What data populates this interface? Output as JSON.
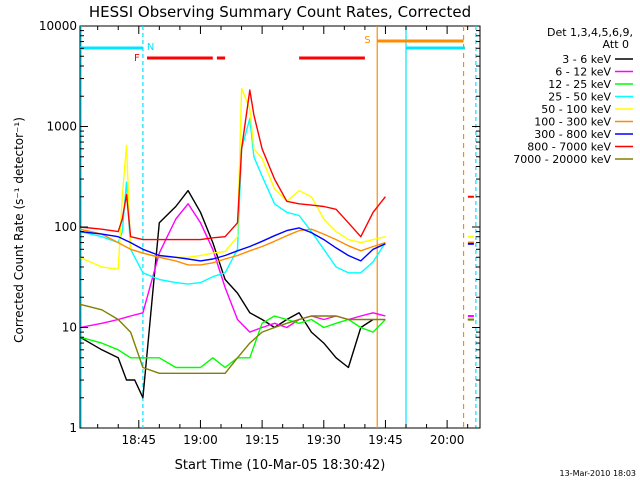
{
  "chart_data": {
    "type": "line",
    "title": "HESSI Observing Summary Count Rates, Corrected",
    "xlabel": "Start Time (10-Mar-05 18:30:42)",
    "ylabel": "Corrected Count Rate (s⁻¹ detector⁻¹)",
    "yscale": "log",
    "ylim": [
      1,
      10000
    ],
    "xlim": [
      "18:30:42",
      "20:08:00"
    ],
    "x_tick_labels": [
      "18:45",
      "19:00",
      "19:15",
      "19:30",
      "19:45",
      "20:00"
    ],
    "y_tick_labels": [
      "1",
      "10",
      "100",
      "1000",
      "10000"
    ],
    "legend_title": [
      "Det 1,3,4,5,6,9,",
      "Att 0"
    ],
    "legend_position": "right",
    "footer": "13-Mar-2010 18:03",
    "annotations": [
      {
        "label": "N",
        "time": "18:46",
        "color": "#00e5ff"
      },
      {
        "label": "F",
        "time": "18:47",
        "color": "#ff0000"
      },
      {
        "label": "S",
        "time": "19:43",
        "color": "#ff8c00"
      }
    ],
    "series": [
      {
        "name": "3 - 6 keV",
        "color": "#000000",
        "t": [
          "18:30:42",
          "18:36",
          "18:40",
          "18:42",
          "18:44",
          "18:46",
          "18:50",
          "18:54",
          "18:57",
          "19:00",
          "19:03",
          "19:06",
          "19:09",
          "19:12",
          "19:15",
          "19:18",
          "19:21",
          "19:24",
          "19:27",
          "19:30",
          "19:33",
          "19:36",
          "19:39",
          "19:42"
        ],
        "values": [
          8,
          6,
          5,
          3,
          3,
          2,
          110,
          160,
          230,
          140,
          70,
          30,
          22,
          14,
          12,
          10,
          12,
          14,
          9,
          7,
          5,
          4,
          10,
          12
        ]
      },
      {
        "name": "6 - 12 keV",
        "color": "#ff00ff",
        "t": [
          "18:30:42",
          "18:36",
          "18:40",
          "18:43",
          "18:46",
          "18:50",
          "18:54",
          "18:57",
          "19:00",
          "19:03",
          "19:06",
          "19:09",
          "19:12",
          "19:15",
          "19:18",
          "19:21",
          "19:24",
          "19:27",
          "19:30",
          "19:33",
          "19:36",
          "19:39",
          "19:42",
          "19:45"
        ],
        "values": [
          10,
          11,
          12,
          13,
          14,
          55,
          120,
          170,
          110,
          60,
          25,
          12,
          9,
          10,
          11,
          10,
          12,
          13,
          12,
          13,
          12,
          13,
          14,
          13
        ]
      },
      {
        "name": "12 - 25 keV",
        "color": "#00ff00",
        "t": [
          "18:30:42",
          "18:36",
          "18:40",
          "18:43",
          "18:46",
          "18:50",
          "18:54",
          "18:57",
          "19:00",
          "19:03",
          "19:06",
          "19:09",
          "19:12",
          "19:15",
          "19:18",
          "19:21",
          "19:24",
          "19:27",
          "19:30",
          "19:33",
          "19:36",
          "19:39",
          "19:42",
          "19:45"
        ],
        "values": [
          8,
          7,
          6,
          5,
          5,
          5,
          4,
          4,
          4,
          5,
          4,
          5,
          5,
          11,
          13,
          12,
          11,
          12,
          10,
          11,
          12,
          10,
          9,
          12
        ]
      },
      {
        "name": "25 - 50 keV",
        "color": "#00ffff",
        "t": [
          "18:30:42",
          "18:36",
          "18:40",
          "18:41",
          "18:42",
          "18:43",
          "18:46",
          "18:50",
          "18:54",
          "18:57",
          "19:00",
          "19:03",
          "19:06",
          "19:09",
          "19:10",
          "19:12",
          "19:13",
          "19:15",
          "19:18",
          "19:21",
          "19:24",
          "19:27",
          "19:30",
          "19:33",
          "19:36",
          "19:39",
          "19:42",
          "19:45"
        ],
        "values": [
          90,
          80,
          70,
          90,
          280,
          60,
          35,
          30,
          28,
          27,
          28,
          32,
          35,
          60,
          600,
          1200,
          500,
          320,
          170,
          140,
          130,
          90,
          60,
          40,
          35,
          35,
          45,
          70
        ]
      },
      {
        "name": "50 - 100 keV",
        "color": "#ffff00",
        "t": [
          "18:30:42",
          "18:36",
          "18:40",
          "18:41",
          "18:42",
          "18:43",
          "18:46",
          "18:50",
          "18:54",
          "18:57",
          "19:00",
          "19:03",
          "19:06",
          "19:09",
          "19:10",
          "19:12",
          "19:13",
          "19:15",
          "19:18",
          "19:21",
          "19:24",
          "19:27",
          "19:30",
          "19:33",
          "19:36",
          "19:39",
          "19:42",
          "19:45"
        ],
        "values": [
          50,
          40,
          38,
          200,
          650,
          60,
          55,
          50,
          50,
          50,
          52,
          55,
          57,
          80,
          2400,
          1500,
          600,
          480,
          240,
          180,
          230,
          200,
          120,
          90,
          75,
          70,
          75,
          80
        ]
      },
      {
        "name": "100 - 300 keV",
        "color": "#ff8c00",
        "t": [
          "18:30:42",
          "18:36",
          "18:40",
          "18:43",
          "18:46",
          "18:50",
          "18:54",
          "18:57",
          "19:00",
          "19:03",
          "19:06",
          "19:09",
          "19:12",
          "19:15",
          "19:18",
          "19:21",
          "19:24",
          "19:27",
          "19:30",
          "19:33",
          "19:36",
          "19:39",
          "19:42",
          "19:45"
        ],
        "values": [
          95,
          85,
          70,
          60,
          55,
          50,
          46,
          42,
          42,
          44,
          48,
          52,
          58,
          64,
          72,
          82,
          92,
          95,
          85,
          75,
          65,
          58,
          64,
          70
        ]
      },
      {
        "name": "300 - 800 keV",
        "color": "#0000ff",
        "t": [
          "18:30:42",
          "18:36",
          "18:40",
          "18:43",
          "18:46",
          "18:50",
          "18:54",
          "18:57",
          "19:00",
          "19:03",
          "19:06",
          "19:09",
          "19:12",
          "19:15",
          "19:18",
          "19:21",
          "19:24",
          "19:27",
          "19:30",
          "19:33",
          "19:36",
          "19:39",
          "19:42",
          "19:45"
        ],
        "values": [
          90,
          85,
          80,
          70,
          60,
          52,
          50,
          48,
          46,
          48,
          52,
          58,
          64,
          72,
          82,
          92,
          98,
          88,
          75,
          62,
          52,
          46,
          60,
          68
        ]
      },
      {
        "name": "800 - 7000 keV",
        "color": "#ff0000",
        "t": [
          "18:30:42",
          "18:36",
          "18:40",
          "18:41",
          "18:42",
          "18:43",
          "18:46",
          "18:50",
          "18:54",
          "18:57",
          "19:00",
          "19:03",
          "19:06",
          "19:09",
          "19:10",
          "19:12",
          "19:13",
          "19:15",
          "19:18",
          "19:21",
          "19:24",
          "19:27",
          "19:30",
          "19:33",
          "19:36",
          "19:39",
          "19:42",
          "19:45"
        ],
        "values": [
          100,
          95,
          90,
          120,
          210,
          80,
          75,
          75,
          75,
          75,
          75,
          78,
          80,
          110,
          600,
          2300,
          1300,
          600,
          300,
          180,
          170,
          165,
          160,
          150,
          110,
          80,
          140,
          200
        ]
      },
      {
        "name": "7000 - 20000 keV",
        "color": "#808000",
        "t": [
          "18:30:42",
          "18:36",
          "18:40",
          "18:43",
          "18:46",
          "18:50",
          "18:54",
          "18:57",
          "19:00",
          "19:03",
          "19:06",
          "19:09",
          "19:12",
          "19:15",
          "19:18",
          "19:21",
          "19:24",
          "19:27",
          "19:30",
          "19:33",
          "19:36",
          "19:39",
          "19:42",
          "19:45"
        ],
        "values": [
          17,
          15,
          12,
          9,
          4,
          3.5,
          3.5,
          3.5,
          3.5,
          3.5,
          3.5,
          5,
          7,
          9,
          10,
          11,
          12,
          13,
          13,
          13,
          12,
          12,
          12,
          12
        ]
      }
    ]
  }
}
